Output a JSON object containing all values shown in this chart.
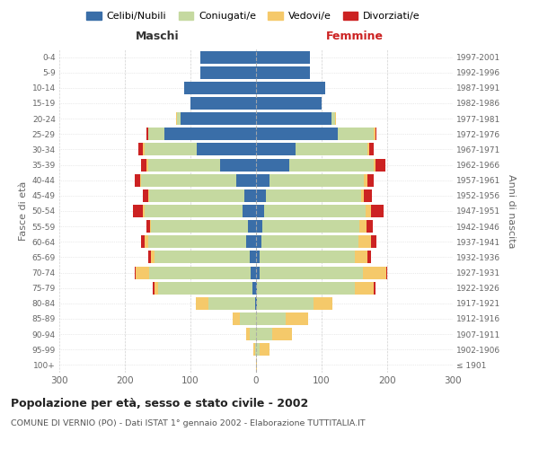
{
  "age_groups": [
    "100+",
    "95-99",
    "90-94",
    "85-89",
    "80-84",
    "75-79",
    "70-74",
    "65-69",
    "60-64",
    "55-59",
    "50-54",
    "45-49",
    "40-44",
    "35-39",
    "30-34",
    "25-29",
    "20-24",
    "15-19",
    "10-14",
    "5-9",
    "0-4"
  ],
  "birth_years": [
    "≤ 1901",
    "1902-1906",
    "1907-1911",
    "1912-1916",
    "1917-1921",
    "1922-1926",
    "1927-1931",
    "1932-1936",
    "1937-1941",
    "1942-1946",
    "1947-1951",
    "1952-1956",
    "1957-1961",
    "1962-1966",
    "1967-1971",
    "1972-1976",
    "1977-1981",
    "1982-1986",
    "1987-1991",
    "1992-1996",
    "1997-2001"
  ],
  "male": {
    "celibi": [
      0,
      0,
      0,
      0,
      2,
      5,
      8,
      10,
      15,
      12,
      20,
      18,
      30,
      55,
      90,
      140,
      115,
      100,
      110,
      85,
      85
    ],
    "coniugati": [
      0,
      2,
      10,
      25,
      70,
      145,
      155,
      145,
      150,
      148,
      150,
      145,
      145,
      110,
      80,
      25,
      5,
      0,
      0,
      0,
      0
    ],
    "vedovi": [
      0,
      2,
      5,
      10,
      20,
      5,
      20,
      5,
      5,
      2,
      2,
      2,
      2,
      2,
      2,
      0,
      2,
      0,
      0,
      0,
      0
    ],
    "divorziati": [
      0,
      0,
      0,
      0,
      0,
      2,
      2,
      5,
      5,
      5,
      15,
      8,
      8,
      8,
      8,
      2,
      0,
      0,
      0,
      0,
      0
    ]
  },
  "female": {
    "nubili": [
      0,
      0,
      0,
      0,
      2,
      2,
      5,
      5,
      8,
      10,
      12,
      15,
      20,
      50,
      60,
      125,
      115,
      100,
      105,
      82,
      82
    ],
    "coniugate": [
      0,
      5,
      25,
      45,
      85,
      148,
      158,
      145,
      148,
      148,
      155,
      145,
      145,
      130,
      110,
      55,
      5,
      0,
      0,
      0,
      0
    ],
    "vedove": [
      2,
      15,
      30,
      35,
      30,
      30,
      35,
      20,
      20,
      10,
      8,
      5,
      5,
      2,
      2,
      2,
      2,
      0,
      0,
      0,
      0
    ],
    "divorziate": [
      0,
      0,
      0,
      0,
      0,
      2,
      2,
      5,
      8,
      10,
      20,
      12,
      10,
      15,
      8,
      2,
      0,
      0,
      0,
      0,
      0
    ]
  },
  "colors": {
    "celibi": "#3a6ea8",
    "coniugati": "#c5d9a0",
    "vedovi": "#f5c96a",
    "divorziati": "#cc2222"
  },
  "xlim": 300,
  "title": "Popolazione per età, sesso e stato civile - 2002",
  "subtitle": "COMUNE DI VERNIO (PO) - Dati ISTAT 1° gennaio 2002 - Elaborazione TUTTITALIA.IT",
  "xlabel_left": "Maschi",
  "xlabel_right": "Femmine",
  "ylabel": "Fasce di età",
  "ylabel_right": "Anni di nascita",
  "legend_labels": [
    "Celibi/Nubili",
    "Coniugati/e",
    "Vedovi/e",
    "Divorziati/e"
  ],
  "background_color": "#ffffff",
  "grid_color": "#cccccc"
}
